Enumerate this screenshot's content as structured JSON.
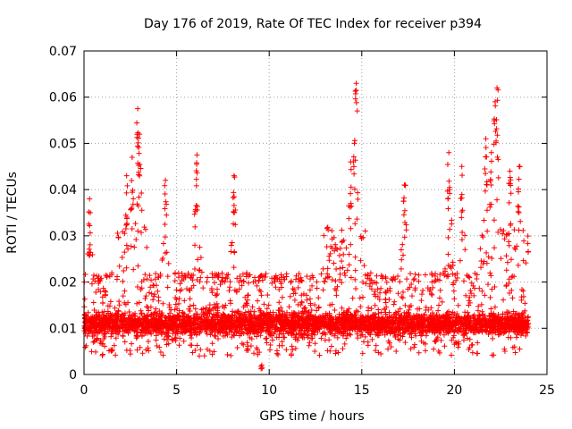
{
  "chart_data": {
    "type": "scatter",
    "title": "Day 176 of 2019, Rate Of TEC Index for receiver p394",
    "xlabel": "GPS time / hours",
    "ylabel": "ROTI / TECUs",
    "xlim": [
      0,
      25
    ],
    "ylim": [
      0,
      0.07
    ],
    "xticks": [
      0,
      5,
      10,
      15,
      20,
      25
    ],
    "yticks": [
      0,
      0.01,
      0.02,
      0.03,
      0.04,
      0.05,
      0.06,
      0.07
    ],
    "xtick_labels": [
      "0",
      "5",
      "10",
      "15",
      "20",
      "25"
    ],
    "ytick_labels": [
      "0",
      "0.01",
      "0.02",
      "0.03",
      "0.04",
      "0.05",
      "0.06",
      "0.07"
    ],
    "grid": true,
    "marker": "plus",
    "color": "#ff0000",
    "series": [
      {
        "name": "ROTI",
        "x_range": [
          0,
          24
        ],
        "density_profile": {
          "dense_band": [
            0.004,
            0.02
          ],
          "typical_median": 0.011
        },
        "peaks": [
          {
            "x": 0.3,
            "y": 0.038
          },
          {
            "x": 2.3,
            "y": 0.043
          },
          {
            "x": 2.6,
            "y": 0.047
          },
          {
            "x": 2.9,
            "y": 0.0575
          },
          {
            "x": 3.0,
            "y": 0.052
          },
          {
            "x": 4.4,
            "y": 0.042
          },
          {
            "x": 6.1,
            "y": 0.0475
          },
          {
            "x": 8.1,
            "y": 0.043
          },
          {
            "x": 9.6,
            "y": 0.002
          },
          {
            "x": 14.4,
            "y": 0.046
          },
          {
            "x": 14.6,
            "y": 0.05
          },
          {
            "x": 14.7,
            "y": 0.063
          },
          {
            "x": 17.3,
            "y": 0.041
          },
          {
            "x": 19.7,
            "y": 0.048
          },
          {
            "x": 20.4,
            "y": 0.045
          },
          {
            "x": 21.7,
            "y": 0.051
          },
          {
            "x": 22.0,
            "y": 0.048
          },
          {
            "x": 22.3,
            "y": 0.062
          },
          {
            "x": 22.2,
            "y": 0.059
          },
          {
            "x": 23.0,
            "y": 0.044
          },
          {
            "x": 23.5,
            "y": 0.045
          }
        ]
      }
    ]
  }
}
